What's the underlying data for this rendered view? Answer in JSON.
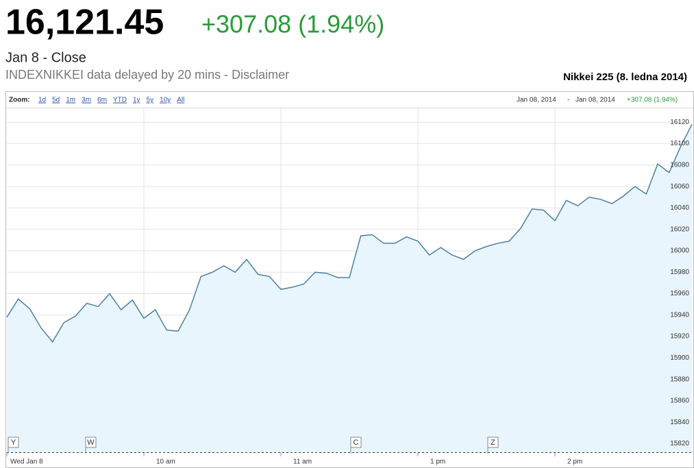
{
  "header": {
    "price": "16,121.45",
    "change": "+307.08 (1.94%)",
    "date": "Jan 8 - Close",
    "source": "INDEXNIKKEI data delayed by 20 mins - Disclaimer",
    "chart_title": "Nikkei 225 (8. ledna 2014)"
  },
  "toolbar": {
    "zoom_label": "Zoom:",
    "zoom_options": [
      "1d",
      "5d",
      "1m",
      "3m",
      "6m",
      "YTD",
      "1y",
      "5y",
      "10y",
      "All"
    ],
    "range_start": "Jan 08, 2014",
    "range_sep": "-",
    "range_end": "Jan 08, 2014",
    "range_change": "+307.08 (1.94%)"
  },
  "chart_data": {
    "type": "area",
    "color": "#4a7fa5",
    "fill": "#e8f5fc",
    "x": [
      0,
      5,
      10,
      15,
      20,
      25,
      30,
      35,
      40,
      45,
      50,
      55,
      60,
      65,
      70,
      75,
      80,
      85,
      90,
      95,
      100,
      105,
      110,
      115,
      120,
      125,
      130,
      135,
      140,
      145,
      150,
      155,
      160,
      165,
      170,
      175,
      180,
      185,
      190,
      195,
      200,
      205,
      210,
      215,
      220,
      225,
      230,
      235,
      240,
      245,
      250,
      255,
      260,
      265,
      270,
      275,
      280,
      285,
      290,
      295,
      300
    ],
    "values": [
      15938,
      15955,
      15946,
      15928,
      15915,
      15933,
      15939,
      15951,
      15948,
      15960,
      15945,
      15954,
      15937,
      15945,
      15926,
      15925,
      15945,
      15976,
      15980,
      15986,
      15980,
      15992,
      15978,
      15976,
      15964,
      15966,
      15969,
      15980,
      15979,
      15975,
      15975,
      16014,
      16015,
      16007,
      16007,
      16013,
      16009,
      15996,
      16003,
      15996,
      15992,
      16000,
      16004,
      16007,
      16009,
      16021,
      16039,
      16038,
      16028,
      16047,
      16042,
      16050,
      16048,
      16044,
      16051,
      16060,
      16053,
      16081,
      16073,
      16097,
      16118
    ],
    "xlim": [
      0,
      300
    ],
    "xticks": [
      {
        "value": 0,
        "label": "Wed Jan 8"
      },
      {
        "value": 60,
        "label": "10 am"
      },
      {
        "value": 120,
        "label": "11 am"
      },
      {
        "value": 180,
        "label": "1 pm"
      },
      {
        "value": 240,
        "label": "2 pm"
      }
    ],
    "ylim": [
      15812,
      16133
    ],
    "yticks": [
      15820,
      15840,
      15860,
      15880,
      15900,
      15920,
      15940,
      15960,
      15980,
      16000,
      16020,
      16040,
      16060,
      16080,
      16100,
      16120
    ],
    "grid": true,
    "flags": [
      "Y",
      "W",
      "C",
      "Z"
    ]
  }
}
